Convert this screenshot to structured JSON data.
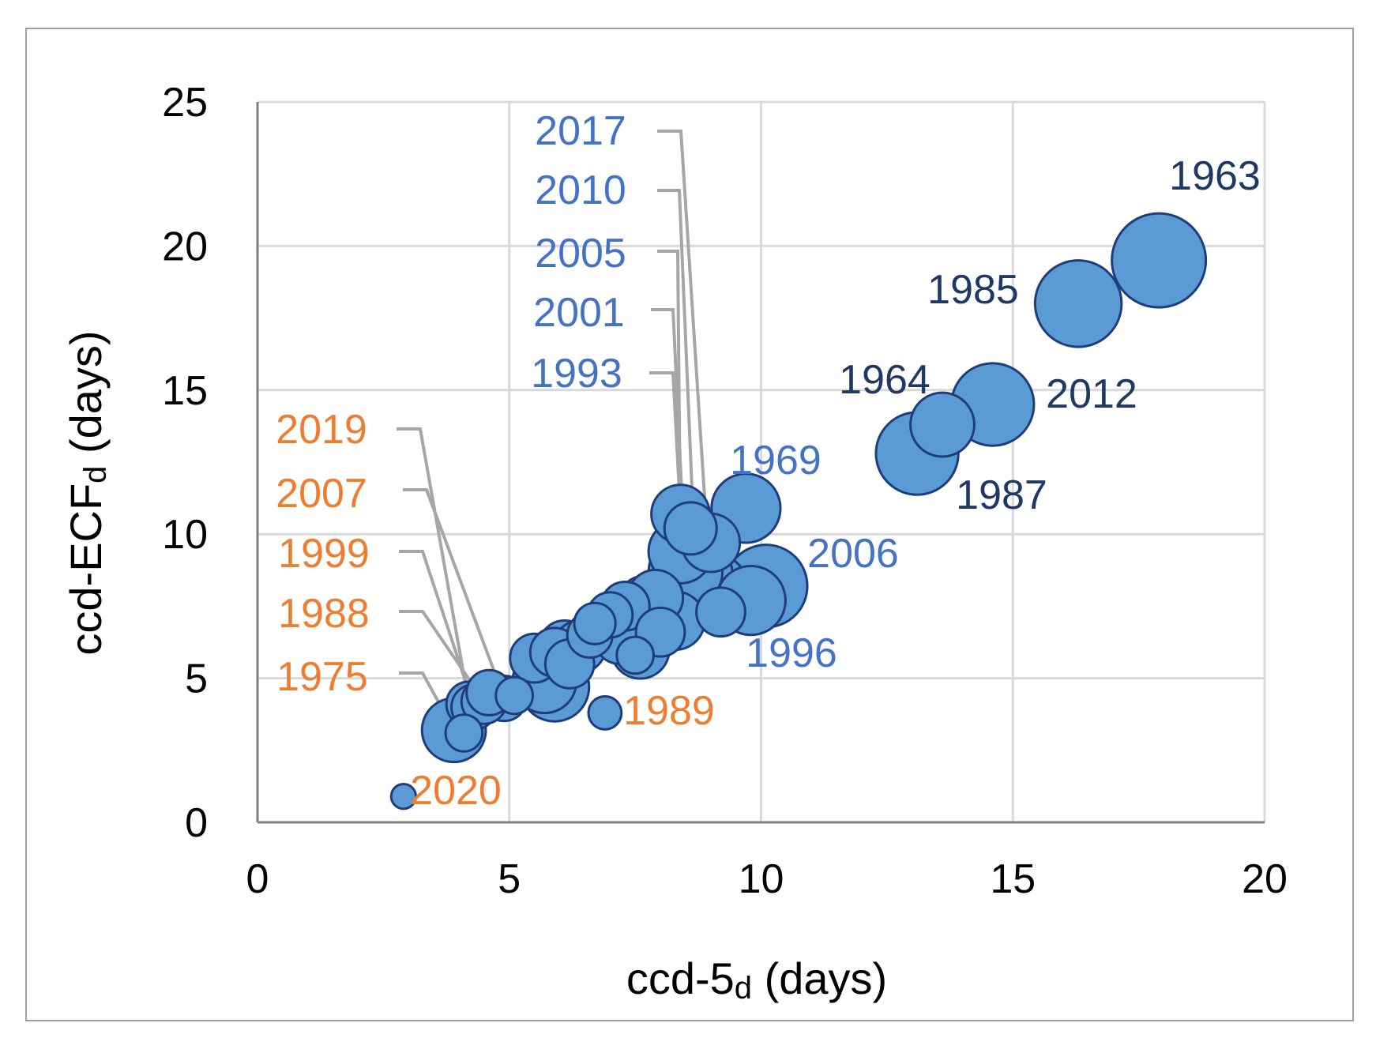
{
  "chart_data": {
    "type": "scatter",
    "subtype": "bubble",
    "xlabel": {
      "main": "ccd-5",
      "sub": "d",
      "unit": " (days)"
    },
    "ylabel": {
      "main": "ccd-ECF",
      "sub": "d",
      "unit": " (days)"
    },
    "xlim": [
      0,
      20
    ],
    "ylim": [
      0,
      25
    ],
    "xticks": [
      0,
      5,
      10,
      15,
      20
    ],
    "yticks": [
      0,
      5,
      10,
      15,
      20,
      25
    ],
    "grid": true,
    "colors": {
      "bubble_fill": "#5B9BD5",
      "bubble_stroke": "#1F3D7A",
      "label_dark": "#1F3864",
      "label_blue": "#4472C4",
      "label_orange": "#ED7D31",
      "leader": "#A6A6A6",
      "grid": "#D9D9D9",
      "frame": "#A0A0A0"
    },
    "points": [
      {
        "x": 17.9,
        "y": 19.5,
        "size": 13,
        "label": "1963",
        "label_color": "dark"
      },
      {
        "x": 16.3,
        "y": 18.0,
        "size": 11,
        "label": "1985",
        "label_color": "dark"
      },
      {
        "x": 13.6,
        "y": 13.8,
        "size": 6,
        "label": "1964",
        "label_color": "dark"
      },
      {
        "x": 14.6,
        "y": 14.5,
        "size": 10,
        "label": "2012",
        "label_color": "dark"
      },
      {
        "x": 13.1,
        "y": 12.8,
        "size": 10,
        "label": "1987",
        "label_color": "dark"
      },
      {
        "x": 9.7,
        "y": 10.9,
        "size": 7,
        "label": "1969",
        "label_color": "blue"
      },
      {
        "x": 10.1,
        "y": 8.2,
        "size": 10,
        "label": "2006",
        "label_color": "blue"
      },
      {
        "x": 9.8,
        "y": 7.7,
        "size": 7,
        "label": "1996",
        "label_color": "blue"
      },
      {
        "x": 9.0,
        "y": 8.0,
        "size": 9,
        "label": "2017",
        "label_color": "blue"
      },
      {
        "x": 8.7,
        "y": 8.6,
        "size": 8,
        "label": "2010",
        "label_color": "blue"
      },
      {
        "x": 8.4,
        "y": 9.4,
        "size": 6,
        "label": "2005",
        "label_color": "blue"
      },
      {
        "x": 8.5,
        "y": 8.7,
        "size": 8,
        "label": "2001",
        "label_color": "blue"
      },
      {
        "x": 8.4,
        "y": 10.7,
        "size": 5,
        "label": "1993",
        "label_color": "blue"
      },
      {
        "x": 4.2,
        "y": 4.1,
        "size": 3,
        "label": "2019",
        "label_color": "orange"
      },
      {
        "x": 4.9,
        "y": 4.3,
        "size": 3,
        "label": "2007",
        "label_color": "orange"
      },
      {
        "x": 4.3,
        "y": 4.0,
        "size": 3,
        "label": "1999",
        "label_color": "orange"
      },
      {
        "x": 4.5,
        "y": 4.2,
        "size": 3,
        "label": "1988",
        "label_color": "orange"
      },
      {
        "x": 3.9,
        "y": 3.2,
        "size": 6,
        "label": "1975",
        "label_color": "orange"
      },
      {
        "x": 6.9,
        "y": 3.8,
        "size": 1.6,
        "label": "1989",
        "label_color": "orange"
      },
      {
        "x": 2.9,
        "y": 0.9,
        "size": 0.9,
        "label": "2020",
        "label_color": "orange"
      },
      {
        "x": 4.1,
        "y": 3.1,
        "size": 2,
        "label": ""
      },
      {
        "x": 4.6,
        "y": 4.5,
        "size": 3,
        "label": ""
      },
      {
        "x": 5.1,
        "y": 4.4,
        "size": 2,
        "label": ""
      },
      {
        "x": 5.5,
        "y": 5.7,
        "size": 3.5,
        "label": ""
      },
      {
        "x": 5.7,
        "y": 4.9,
        "size": 6,
        "label": ""
      },
      {
        "x": 5.9,
        "y": 4.7,
        "size": 7,
        "label": ""
      },
      {
        "x": 5.9,
        "y": 5.9,
        "size": 3.5,
        "label": ""
      },
      {
        "x": 6.1,
        "y": 6.1,
        "size": 4,
        "label": ""
      },
      {
        "x": 6.2,
        "y": 5.5,
        "size": 3.5,
        "label": ""
      },
      {
        "x": 6.4,
        "y": 6.1,
        "size": 4,
        "label": ""
      },
      {
        "x": 6.6,
        "y": 6.5,
        "size": 3,
        "label": ""
      },
      {
        "x": 6.7,
        "y": 6.9,
        "size": 2.5,
        "label": ""
      },
      {
        "x": 7.0,
        "y": 7.2,
        "size": 3,
        "label": ""
      },
      {
        "x": 7.2,
        "y": 6.4,
        "size": 4,
        "label": ""
      },
      {
        "x": 7.3,
        "y": 7.5,
        "size": 3.5,
        "label": ""
      },
      {
        "x": 7.6,
        "y": 6.0,
        "size": 5,
        "label": ""
      },
      {
        "x": 7.5,
        "y": 5.8,
        "size": 2,
        "label": ""
      },
      {
        "x": 7.7,
        "y": 7.6,
        "size": 4.5,
        "label": ""
      },
      {
        "x": 7.9,
        "y": 7.8,
        "size": 4.5,
        "label": ""
      },
      {
        "x": 8.0,
        "y": 6.6,
        "size": 3.5,
        "label": ""
      },
      {
        "x": 8.3,
        "y": 7.0,
        "size": 5,
        "label": ""
      },
      {
        "x": 8.6,
        "y": 10.2,
        "size": 4,
        "label": ""
      },
      {
        "x": 9.0,
        "y": 9.7,
        "size": 5,
        "label": ""
      },
      {
        "x": 9.2,
        "y": 7.3,
        "size": 3.5,
        "label": ""
      }
    ],
    "label_groups": {
      "dark": [
        {
          "text": "1963",
          "year": "1963"
        },
        {
          "text": "1985",
          "year": "1985"
        },
        {
          "text": "1964",
          "year": "1964"
        },
        {
          "text": "2012",
          "year": "2012"
        },
        {
          "text": "1987",
          "year": "1987"
        }
      ]
    }
  }
}
